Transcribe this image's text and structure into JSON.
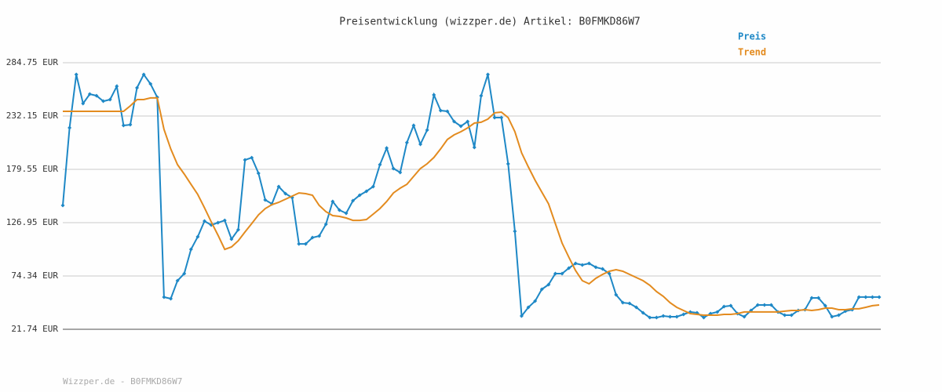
{
  "chart_data": {
    "type": "line",
    "title": "Preisentwicklung (wizzper.de) Artikel: B0FMKD86W7",
    "footer": "Wizzper.de - B0FMKD86W7",
    "ylim": [
      21.74,
      284.75
    ],
    "yticks": [
      {
        "value": 21.74,
        "label": "21.74 EUR"
      },
      {
        "value": 74.34,
        "label": "74.34 EUR"
      },
      {
        "value": 126.95,
        "label": "126.95 EUR"
      },
      {
        "value": 179.55,
        "label": "179.55 EUR"
      },
      {
        "value": 232.15,
        "label": "232.15 EUR"
      },
      {
        "value": 284.75,
        "label": "284.75 EUR"
      }
    ],
    "grid": true,
    "legend": "top-right",
    "series": [
      {
        "name": "Preis",
        "color": "#1e88c6",
        "markers": true,
        "values": [
          143.96,
          220.5,
          273.1,
          244.5,
          253.8,
          252.2,
          246.8,
          248.4,
          261.5,
          222.9,
          223.6,
          260.0,
          273.1,
          263.9,
          250.7,
          53.5,
          51.9,
          69.7,
          76.7,
          100.6,
          113.0,
          128.5,
          124.6,
          126.9,
          129.2,
          110.7,
          120.0,
          188.8,
          191.1,
          175.7,
          149.4,
          145.5,
          162.5,
          155.6,
          151.7,
          106.0,
          106.0,
          112.2,
          113.8,
          125.4,
          147.8,
          139.3,
          136.2,
          148.6,
          154.0,
          157.9,
          162.5,
          184.2,
          200.5,
          180.3,
          176.5,
          205.9,
          222.9,
          204.3,
          218.3,
          253.0,
          237.6,
          236.8,
          226.7,
          222.1,
          226.7,
          201.2,
          252.2,
          273.1,
          230.6,
          230.6,
          185.0,
          118.4,
          34.9,
          43.4,
          49.6,
          61.2,
          65.8,
          76.7,
          76.7,
          82.1,
          86.7,
          85.2,
          86.7,
          82.9,
          81.3,
          76.7,
          55.8,
          48.0,
          47.3,
          43.4,
          38.0,
          33.3,
          33.3,
          34.9,
          34.1,
          34.1,
          36.4,
          38.8,
          38.0,
          33.3,
          37.2,
          38.8,
          44.2,
          45.0,
          37.2,
          34.1,
          40.3,
          45.7,
          45.7,
          45.7,
          38.8,
          35.7,
          35.7,
          40.3,
          41.1,
          52.7,
          52.7,
          45.0,
          34.1,
          35.7,
          39.6,
          41.1,
          53.5,
          53.5,
          53.5,
          53.5
        ]
      },
      {
        "name": "Trend",
        "color": "#e38b1f",
        "markers": false,
        "values": [
          236.8,
          236.8,
          236.8,
          236.8,
          236.8,
          236.8,
          236.8,
          236.8,
          236.8,
          236.8,
          242.2,
          248.4,
          248.4,
          250.0,
          250.0,
          219.0,
          199.7,
          184.2,
          174.9,
          164.8,
          154.8,
          141.6,
          127.7,
          114.6,
          100.6,
          103.0,
          109.1,
          117.7,
          126.1,
          134.7,
          140.9,
          144.7,
          147.0,
          150.1,
          153.2,
          156.3,
          155.6,
          154.0,
          144.0,
          137.8,
          133.9,
          133.1,
          131.6,
          129.2,
          129.2,
          130.0,
          135.4,
          140.9,
          147.8,
          156.3,
          161.0,
          164.8,
          172.6,
          180.3,
          185.0,
          191.2,
          199.7,
          209.0,
          213.6,
          216.7,
          220.5,
          225.2,
          226.0,
          229.1,
          235.3,
          236.0,
          230.6,
          216.7,
          195.8,
          181.9,
          168.7,
          157.1,
          145.5,
          126.1,
          106.8,
          92.9,
          79.7,
          69.7,
          66.6,
          72.0,
          75.9,
          79.0,
          80.5,
          79.0,
          75.9,
          72.8,
          69.7,
          65.1,
          58.9,
          54.2,
          48.0,
          43.4,
          40.3,
          37.2,
          36.4,
          35.7,
          35.7,
          35.7,
          36.4,
          36.4,
          37.2,
          38.8,
          38.8,
          38.8,
          38.8,
          38.8,
          38.8,
          39.6,
          40.3,
          40.3,
          41.1,
          40.3,
          41.1,
          42.6,
          42.6,
          41.1,
          41.1,
          41.9,
          41.9,
          43.4,
          45.0,
          45.7
        ]
      }
    ]
  }
}
